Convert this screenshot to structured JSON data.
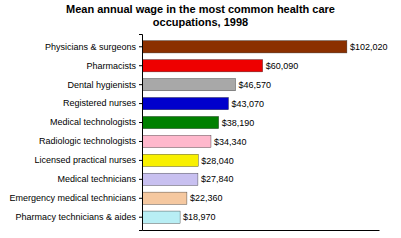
{
  "chart_data": {
    "type": "bar",
    "orientation": "horizontal",
    "title": "Mean annual wage in the most common health care\noccupations, 1998",
    "categories": [
      "Pharmacy technicians & aides",
      "Emergency medical technicians",
      "Medical technicians",
      "Licensed practical nurses",
      "Radiologic technologists",
      "Medical technologists",
      "Registered nurses",
      "Dental hygienists",
      "Pharmacists",
      "Physicians & surgeons"
    ],
    "values": [
      18970,
      22360,
      27840,
      28040,
      34340,
      38190,
      43070,
      46570,
      60090,
      102020
    ],
    "value_labels": [
      "$18,970",
      "$22,360",
      "$27,840",
      "$28,040",
      "$34,340",
      "$38,190",
      "$43,070",
      "$46,570",
      "$60,090",
      "$102,020"
    ],
    "colors": [
      "#b8eef4",
      "#f5c8a0",
      "#c8c0f0",
      "#f8f000",
      "#ffb8cc",
      "#008000",
      "#0000cc",
      "#a8a8a8",
      "#ee0000",
      "#8b3000"
    ],
    "xlim": [
      0,
      118000
    ],
    "data_labels": true,
    "tick_labels": "y",
    "grid": false
  }
}
